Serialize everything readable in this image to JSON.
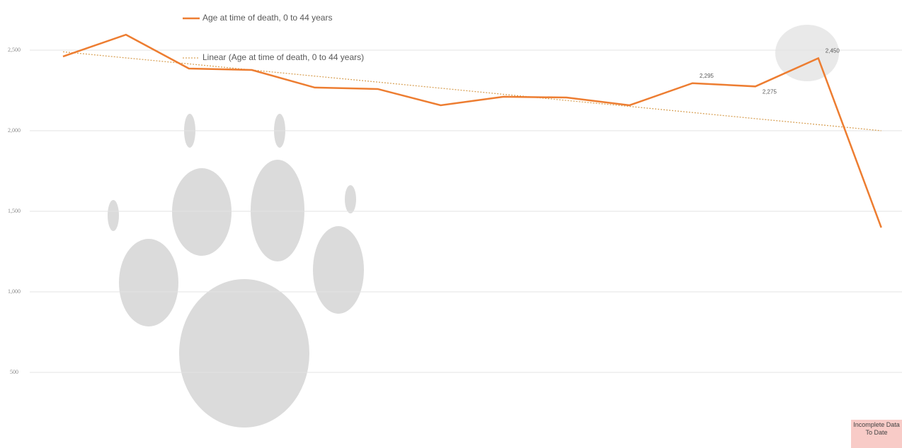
{
  "chart_data": {
    "type": "line",
    "categories": [
      null,
      null,
      null,
      null,
      null,
      null,
      null,
      null,
      null,
      null,
      null,
      null,
      null,
      null
    ],
    "series": [
      {
        "name": "Age at time of death, 0 to 44 years",
        "color": "#ed7d31",
        "values": [
          2461,
          2596,
          2386,
          2377,
          2268,
          2259,
          2158,
          2211,
          2206,
          2158,
          2295,
          2275,
          2450,
          1399
        ],
        "value_labels": [
          null,
          null,
          null,
          null,
          null,
          null,
          null,
          null,
          null,
          null,
          "2,295",
          "2,275",
          "2,450",
          null
        ]
      },
      {
        "name": "Linear (Age at time of death, 0 to 44 years)",
        "color": "#d9a35a",
        "dash": true,
        "values": [
          2490,
          2452,
          2415,
          2377,
          2339,
          2302,
          2264,
          2226,
          2188,
          2151,
          2113,
          2075,
          2038,
          2000
        ]
      }
    ],
    "ylim": [
      0,
      2800
    ],
    "yticks": [
      {
        "value": 500,
        "label": "500"
      },
      {
        "value": 1000,
        "label": "1,000"
      },
      {
        "value": 1500,
        "label": "1,500"
      },
      {
        "value": 2000,
        "label": "2,000"
      },
      {
        "value": 2500,
        "label": "2,500"
      }
    ],
    "grid": true,
    "annotation": "Incomplete Data To Date"
  }
}
